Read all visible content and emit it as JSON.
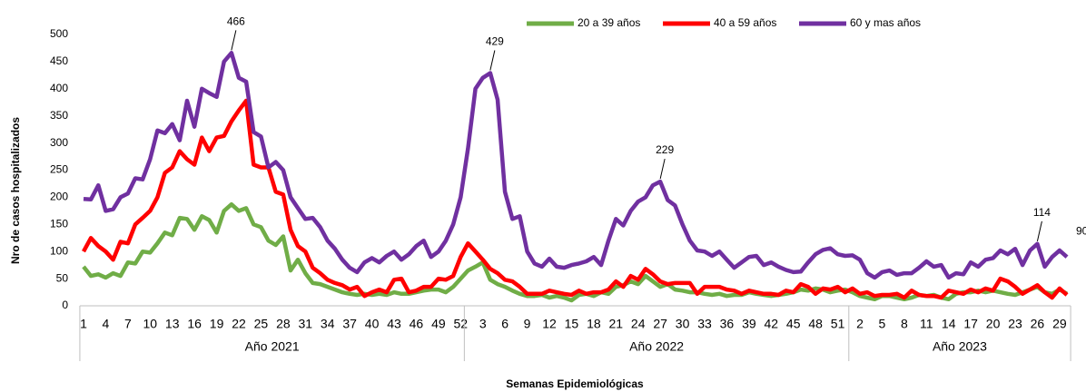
{
  "chart_data": {
    "type": "line",
    "y_label": "Nro de casos hospitalizados",
    "x_label": "Semanas Epidemiológicas",
    "ylim": [
      0,
      500
    ],
    "yticks": [
      0,
      50,
      100,
      150,
      200,
      250,
      300,
      350,
      400,
      450,
      500
    ],
    "grid": false,
    "legend": "top",
    "groups": [
      {
        "name": "Año 2021",
        "size": 52
      },
      {
        "name": "Año 2022",
        "size": 52
      },
      {
        "name": "Año 2023",
        "size": 30
      }
    ],
    "categories": [
      "1",
      null,
      null,
      "4",
      null,
      null,
      "7",
      null,
      null,
      "10",
      null,
      null,
      "13",
      null,
      null,
      "16",
      null,
      null,
      "19",
      null,
      null,
      "22",
      null,
      null,
      "25",
      null,
      null,
      "28",
      null,
      null,
      "31",
      null,
      null,
      "34",
      null,
      null,
      "37",
      null,
      null,
      "40",
      null,
      null,
      "43",
      null,
      null,
      "46",
      null,
      null,
      "49",
      null,
      null,
      "52",
      null,
      null,
      "3",
      null,
      null,
      "6",
      null,
      null,
      "9",
      null,
      null,
      "12",
      null,
      null,
      "15",
      null,
      null,
      "18",
      null,
      null,
      "21",
      null,
      null,
      "24",
      null,
      null,
      "27",
      null,
      null,
      "30",
      null,
      null,
      "33",
      null,
      null,
      "36",
      null,
      null,
      "39",
      null,
      null,
      "42",
      null,
      null,
      "45",
      null,
      null,
      "48",
      null,
      null,
      "51",
      null,
      null,
      "2",
      null,
      null,
      "5",
      null,
      null,
      "8",
      null,
      null,
      "11",
      null,
      null,
      "14",
      null,
      null,
      "17",
      null,
      null,
      "20",
      null,
      null,
      "23",
      null,
      null,
      "26",
      null,
      null,
      "29",
      null
    ],
    "series": [
      {
        "name": "20 a 39 años",
        "color": "#70ad47",
        "values": [
          72,
          55,
          58,
          52,
          60,
          55,
          80,
          78,
          100,
          98,
          115,
          135,
          130,
          162,
          160,
          140,
          165,
          158,
          135,
          175,
          187,
          175,
          180,
          150,
          145,
          120,
          112,
          128,
          65,
          85,
          60,
          42,
          40,
          35,
          30,
          25,
          22,
          20,
          22,
          20,
          22,
          20,
          25,
          22,
          22,
          25,
          28,
          30,
          30,
          25,
          35,
          50,
          65,
          72,
          80,
          48,
          40,
          35,
          28,
          22,
          18,
          18,
          20,
          15,
          18,
          15,
          10,
          20,
          22,
          18,
          25,
          22,
          35,
          38,
          45,
          40,
          55,
          45,
          35,
          40,
          30,
          28,
          25,
          25,
          22,
          20,
          22,
          18,
          20,
          20,
          25,
          22,
          20,
          18,
          20,
          22,
          25,
          30,
          28,
          32,
          30,
          25,
          28,
          30,
          25,
          18,
          15,
          12,
          18,
          18,
          15,
          12,
          15,
          20,
          18,
          20,
          15,
          12,
          22,
          25,
          25,
          28,
          25,
          28,
          25,
          22,
          20,
          25,
          30,
          35,
          25,
          22,
          30,
          22
        ]
      },
      {
        "name": "40 a 59 años",
        "color": "#ff0000",
        "values": [
          100,
          125,
          110,
          100,
          85,
          118,
          115,
          150,
          162,
          175,
          200,
          245,
          255,
          285,
          270,
          260,
          310,
          285,
          310,
          313,
          340,
          360,
          378,
          260,
          255,
          255,
          210,
          205,
          140,
          110,
          100,
          70,
          60,
          48,
          42,
          38,
          30,
          35,
          18,
          25,
          30,
          25,
          48,
          50,
          25,
          28,
          35,
          35,
          50,
          48,
          55,
          90,
          115,
          100,
          85,
          68,
          60,
          48,
          45,
          35,
          22,
          22,
          22,
          28,
          25,
          22,
          20,
          28,
          22,
          25,
          25,
          30,
          45,
          35,
          55,
          48,
          68,
          58,
          45,
          40,
          42,
          42,
          42,
          22,
          35,
          35,
          35,
          30,
          28,
          22,
          28,
          25,
          22,
          22,
          20,
          28,
          25,
          40,
          35,
          22,
          32,
          30,
          35,
          25,
          32,
          22,
          25,
          18,
          20,
          20,
          22,
          15,
          28,
          20,
          18,
          18,
          15,
          28,
          25,
          22,
          30,
          25,
          32,
          28,
          50,
          45,
          35,
          22,
          30,
          38,
          25,
          15,
          32,
          20
        ]
      },
      {
        "name": "60 y mas años",
        "color": "#7030a0",
        "values": [
          197,
          196,
          222,
          175,
          178,
          200,
          207,
          235,
          233,
          270,
          323,
          318,
          335,
          305,
          378,
          330,
          400,
          392,
          385,
          450,
          466,
          420,
          413,
          320,
          312,
          255,
          265,
          250,
          200,
          180,
          160,
          162,
          145,
          120,
          105,
          85,
          70,
          62,
          80,
          88,
          80,
          92,
          100,
          85,
          95,
          110,
          120,
          90,
          100,
          120,
          150,
          200,
          290,
          400,
          420,
          429,
          380,
          210,
          160,
          165,
          100,
          78,
          72,
          87,
          72,
          70,
          75,
          78,
          82,
          90,
          75,
          120,
          160,
          148,
          175,
          192,
          200,
          222,
          229,
          195,
          185,
          150,
          120,
          102,
          100,
          92,
          100,
          85,
          70,
          80,
          90,
          92,
          75,
          80,
          72,
          66,
          62,
          63,
          80,
          95,
          103,
          106,
          95,
          92,
          93,
          85,
          60,
          52,
          62,
          65,
          57,
          60,
          60,
          70,
          82,
          72,
          75,
          52,
          60,
          58,
          80,
          72,
          85,
          88,
          102,
          95,
          105,
          75,
          102,
          114,
          72,
          90,
          102,
          90
        ],
        "value_labels": [
          null,
          null,
          null,
          null,
          null,
          null,
          null,
          null,
          null,
          null,
          null,
          null,
          null,
          null,
          null,
          null,
          null,
          null,
          null,
          null,
          "466",
          null,
          null,
          null,
          null,
          null,
          null,
          null,
          null,
          null,
          null,
          null,
          null,
          null,
          null,
          null,
          null,
          null,
          null,
          null,
          null,
          null,
          null,
          null,
          null,
          null,
          null,
          null,
          null,
          null,
          null,
          null,
          null,
          null,
          null,
          "429",
          null,
          null,
          null,
          null,
          null,
          null,
          null,
          null,
          null,
          null,
          null,
          null,
          null,
          null,
          null,
          null,
          null,
          null,
          null,
          null,
          null,
          null,
          "229",
          null,
          null,
          null,
          null,
          null,
          null,
          null,
          null,
          null,
          null,
          null,
          null,
          null,
          null,
          null,
          null,
          null,
          null,
          null,
          null,
          null,
          null,
          null,
          null,
          null,
          null,
          null,
          null,
          null,
          null,
          null,
          null,
          null,
          null,
          null,
          null,
          null,
          null,
          null,
          null,
          null,
          null,
          null,
          null,
          null,
          null,
          null,
          null,
          null,
          null,
          "114",
          null,
          null,
          null,
          "90"
        ]
      }
    ]
  }
}
